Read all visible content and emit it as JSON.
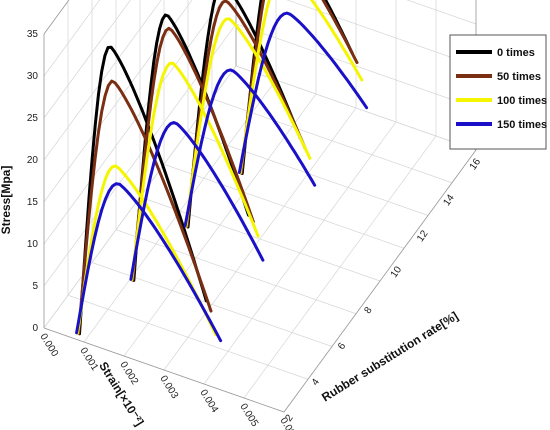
{
  "chart_data": {
    "type": "line",
    "projection": "3d-waterfall",
    "ylabel": "Stress[Mpa]",
    "xlabel": "Strain[×10⁻²]",
    "zlabel": "Rubber substitution rate[%]",
    "y_ticks": [
      "0",
      "5",
      "10",
      "15",
      "20",
      "25",
      "30",
      "35"
    ],
    "x_ticks": [
      "0.000",
      "0.001",
      "0.002",
      "0.003",
      "0.004",
      "0.005",
      "0.006"
    ],
    "z_ticks": [
      "2",
      "4",
      "6",
      "8",
      "10",
      "12",
      "14",
      "16"
    ],
    "ylim": [
      0,
      35
    ],
    "xlim": [
      0,
      0.006
    ],
    "legend_position": "top-right",
    "categories": [
      0,
      5,
      10,
      15
    ],
    "series": [
      {
        "name": "0 times",
        "color": "#000000",
        "peaks": [
          35.5,
          33.0,
          30.5,
          30.5
        ]
      },
      {
        "name": "50 times",
        "color": "#7a2e12",
        "peaks": [
          31.5,
          31.5,
          28.5,
          29.0
        ]
      },
      {
        "name": "100 times",
        "color": "#f5f500",
        "peaks": [
          21.5,
          27.5,
          26.5,
          26.0
        ]
      },
      {
        "name": "150 times",
        "color": "#1a10c8",
        "peaks": [
          19.5,
          20.5,
          20.5,
          21.0
        ]
      }
    ]
  }
}
